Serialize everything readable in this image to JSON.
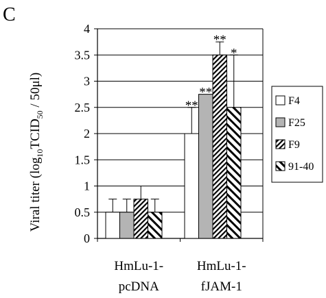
{
  "panel_label": "C",
  "chart_data": {
    "type": "bar",
    "ylabel": "Viral titer (log10TCID50 / 50μl)",
    "ylabel_parts": {
      "prefix": "Viral titer (log",
      "sub1": "10",
      "mid": "TCID",
      "sub2": "50",
      "suffix": " / 50μl)"
    },
    "ylim": [
      0,
      4
    ],
    "yticks": [
      0,
      0.5,
      1,
      1.5,
      2,
      2.5,
      3,
      3.5,
      4
    ],
    "ytick_labels": [
      "0",
      "0.5",
      "1",
      "1.5",
      "2",
      "2.5",
      "3",
      "3.5",
      "4"
    ],
    "grid": true,
    "legend_position": "right",
    "categories": [
      {
        "line1": "HmLu-1-",
        "line2": "pcDNA"
      },
      {
        "line1": "HmLu-1-",
        "line2": "fJAM-1"
      }
    ],
    "series": [
      {
        "name": "F4",
        "pattern": "white",
        "values": [
          0.5,
          2.0
        ],
        "errors": [
          0.25,
          0.5
        ],
        "significance": [
          "",
          "**"
        ]
      },
      {
        "name": "F25",
        "pattern": "gray",
        "values": [
          0.5,
          2.75
        ],
        "errors": [
          0.25,
          0.0
        ],
        "significance": [
          "",
          "**"
        ]
      },
      {
        "name": "F9",
        "pattern": "dense-hatch",
        "values": [
          0.75,
          3.5
        ],
        "errors": [
          0.25,
          0.25
        ],
        "significance": [
          "",
          "**"
        ]
      },
      {
        "name": "91-40",
        "pattern": "wide-hatch",
        "values": [
          0.5,
          2.5
        ],
        "errors": [
          0.25,
          1.0
        ],
        "significance": [
          "",
          "*"
        ]
      }
    ]
  }
}
